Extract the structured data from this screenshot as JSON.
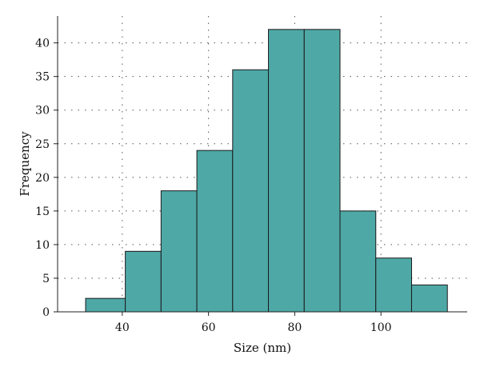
{
  "chart_data": {
    "type": "bar",
    "xlabel": "Size (nm)",
    "ylabel": "Frequency",
    "bin_edges": [
      31.5,
      40.7,
      49.0,
      57.3,
      65.6,
      73.9,
      82.2,
      90.5,
      98.8,
      107.1,
      115.4
    ],
    "values": [
      2,
      9,
      18,
      24,
      36,
      42,
      42,
      15,
      8,
      4
    ],
    "xlim": [
      25,
      120
    ],
    "ylim": [
      0,
      44
    ],
    "xticks": [
      40,
      60,
      80,
      100
    ],
    "yticks": [
      0,
      5,
      10,
      15,
      20,
      25,
      30,
      35,
      40
    ],
    "grid": true,
    "bar_color": "#4ea8a6",
    "edge_color": "#1a1a1a"
  }
}
